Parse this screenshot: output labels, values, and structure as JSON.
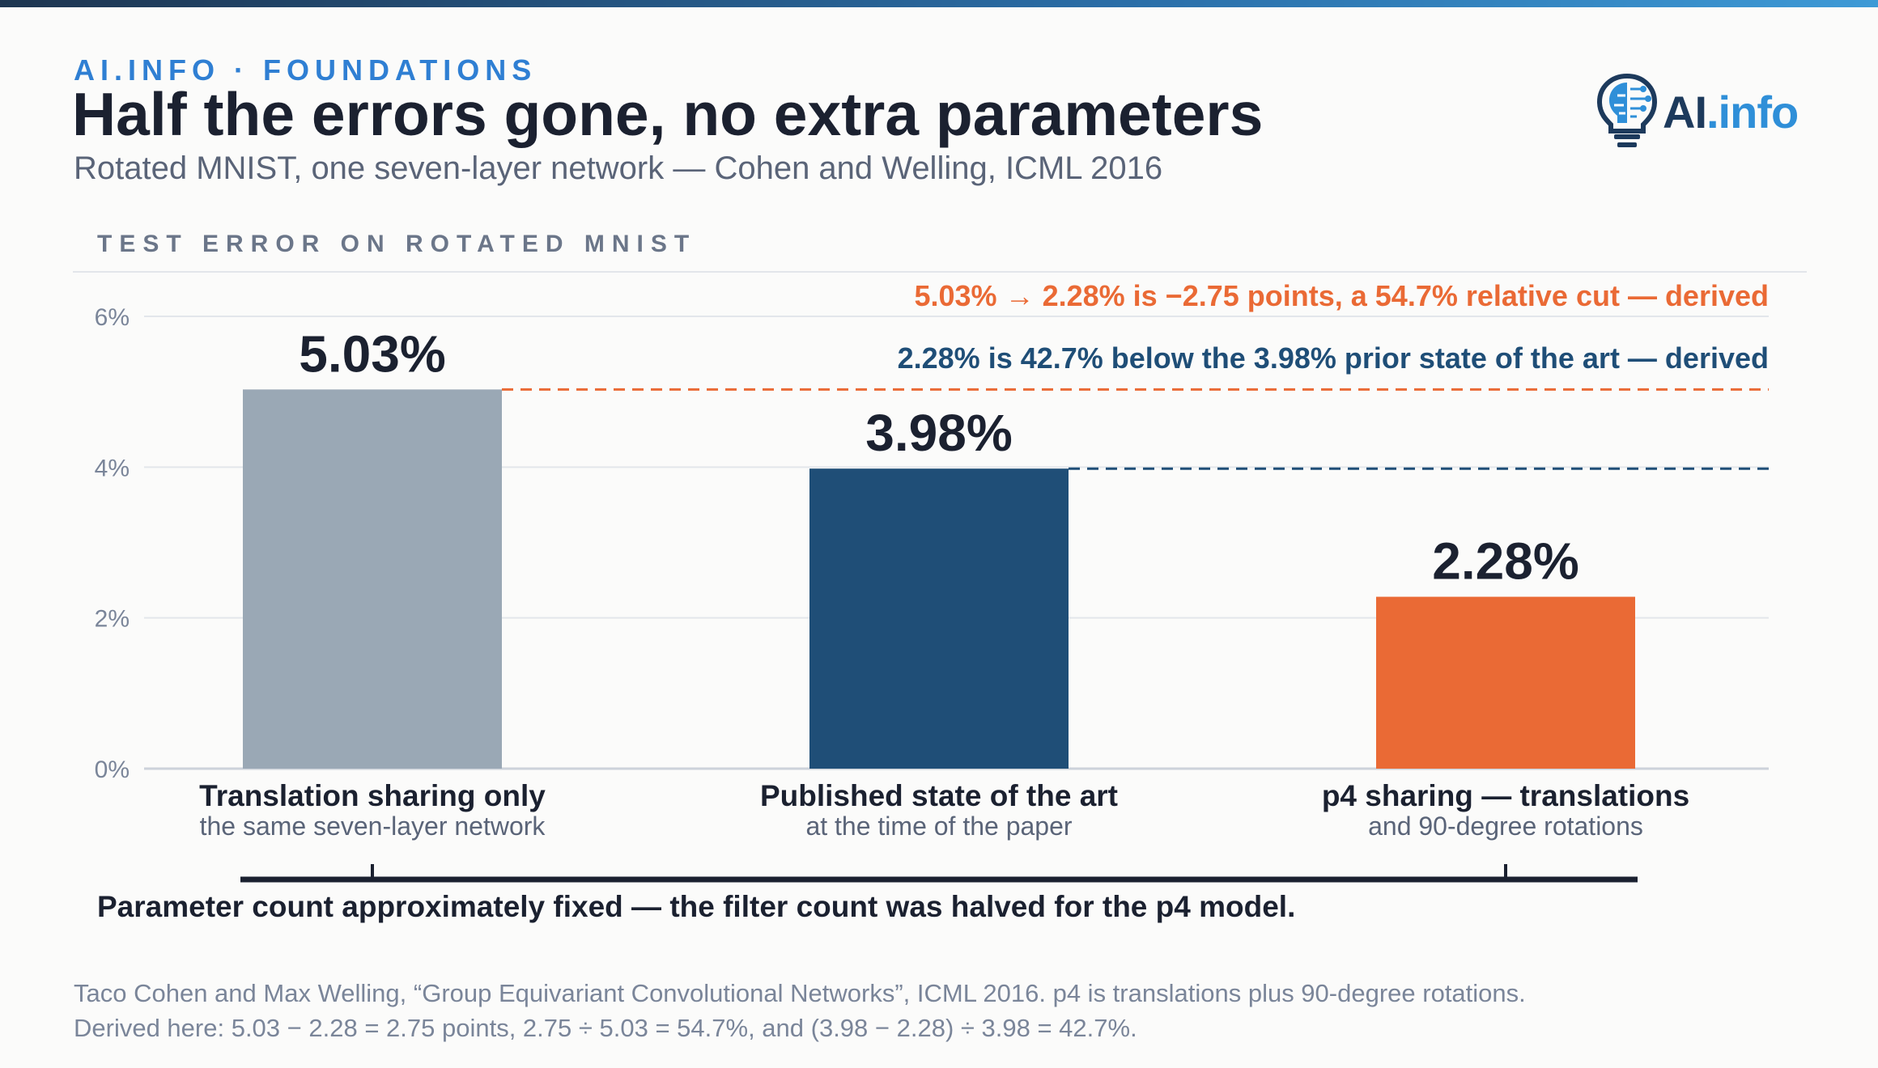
{
  "header": {
    "eyebrow": "AI.INFO · FOUNDATIONS",
    "title": "Half the errors gone, no extra parameters",
    "subtitle": "Rotated MNIST, one seven-layer network — Cohen and Welling, ICML 2016"
  },
  "logo": {
    "name_part1": "AI",
    "name_part2": ".info",
    "icon": "brain-bulb-icon"
  },
  "section_label": "TEST ERROR ON ROTATED MNIST",
  "chart_data": {
    "type": "bar",
    "title": "TEST ERROR ON ROTATED MNIST",
    "categories": [
      "Translation sharing only",
      "Published state of the art",
      "p4 sharing — translations"
    ],
    "category_sublabels": [
      "the same seven-layer network",
      "at the time of the paper",
      "and 90-degree rotations"
    ],
    "values": [
      5.03,
      3.98,
      2.28
    ],
    "value_labels": [
      "5.03%",
      "3.98%",
      "2.28%"
    ],
    "colors": [
      "#9aa8b5",
      "#1f4e77",
      "#ea6a35"
    ],
    "ylim": [
      0,
      6
    ],
    "yticks": [
      0,
      2,
      4,
      6
    ],
    "ytick_labels": [
      "0%",
      "2%",
      "4%",
      "6%"
    ],
    "grid": true,
    "reference_lines": [
      {
        "value": 5.03,
        "color": "#ea6a35"
      },
      {
        "value": 3.98,
        "color": "#1f4e77"
      }
    ],
    "annotations": [
      {
        "text": "5.03% → 2.28% is −2.75 points, a 54.7% relative cut — derived",
        "color": "#ea6a35"
      },
      {
        "text": "2.28% is 42.7% below the 3.98% prior state of the art — derived",
        "color": "#1f4e77"
      }
    ],
    "bracket_note": "Parameter count approximately fixed — the filter count was halved for the p4 model."
  },
  "footnote": {
    "line1": "Taco Cohen and Max Welling, “Group Equivariant Convolutional Networks”, ICML 2016. p4 is translations plus 90-degree rotations.",
    "line2": "Derived here: 5.03 − 2.28 = 2.75 points, 2.75 ÷ 5.03 = 54.7%, and (3.98 − 2.28) ÷ 3.98 = 42.7%."
  }
}
